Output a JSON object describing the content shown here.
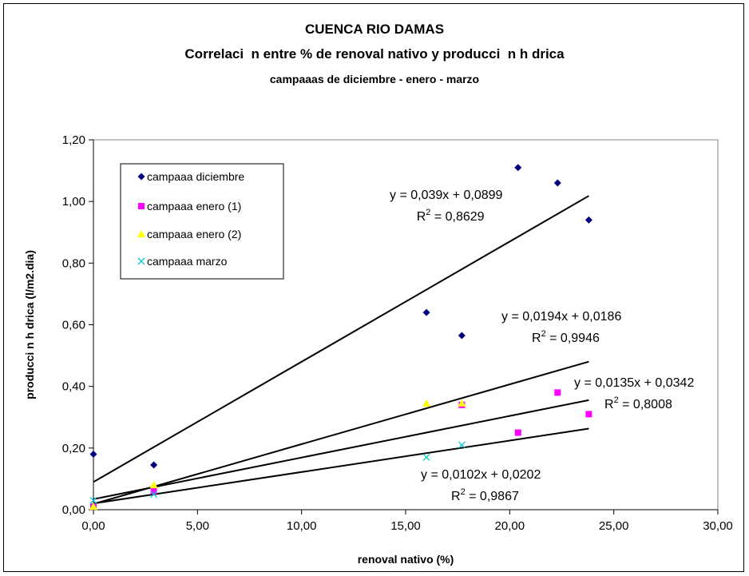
{
  "chart_data": {
    "type": "scatter",
    "title": "CUENCA RIO DAMAS",
    "subtitle": "Correlaci  n entre % de renoval nativo y producci  n h drica",
    "subtitle2": "campaaas de diciembre - enero - marzo",
    "xlabel": "renoval nativo (%)",
    "ylabel": "producci n h drica (l/m2.dia)",
    "xlim": [
      0,
      30
    ],
    "ylim": [
      0,
      1.2
    ],
    "xticks": [
      "0,00",
      "5,00",
      "10,00",
      "15,00",
      "20,00",
      "25,00",
      "30,00"
    ],
    "yticks": [
      "0,00",
      "0,20",
      "0,40",
      "0,60",
      "0,80",
      "1,00",
      "1,20"
    ],
    "grid": false,
    "legend_position": "top-left",
    "series": [
      {
        "name": "campaaa diciembre",
        "marker": "diamond",
        "color": "#000080",
        "x": [
          0,
          2.9,
          16.0,
          17.7,
          20.4,
          22.3,
          23.8
        ],
        "y": [
          0.18,
          0.145,
          0.64,
          0.565,
          1.11,
          1.06,
          0.94
        ]
      },
      {
        "name": "campaaa enero (1)",
        "marker": "square",
        "color": "#ff00ff",
        "x": [
          0,
          2.9,
          17.7,
          20.4,
          22.3,
          23.8
        ],
        "y": [
          0.01,
          0.06,
          0.34,
          0.25,
          0.38,
          0.31
        ]
      },
      {
        "name": "campaaa enero (2)",
        "marker": "triangle",
        "color": "#ffff00",
        "x": [
          0,
          2.9,
          16.0,
          17.7
        ],
        "y": [
          0.01,
          0.08,
          0.345,
          0.345
        ]
      },
      {
        "name": "campaaa marzo",
        "marker": "x",
        "color": "#00cccc",
        "x": [
          0,
          2.9,
          16.0,
          17.7
        ],
        "y": [
          0.03,
          0.05,
          0.17,
          0.21
        ]
      }
    ],
    "trendlines": [
      {
        "slope": 0.039,
        "intercept": 0.0899,
        "x_end": 23.8,
        "equation": "y = 0,039x + 0,0899",
        "r2_label": "R",
        "r2_value": " = 0,8629"
      },
      {
        "slope": 0.0194,
        "intercept": 0.0186,
        "x_end": 23.8,
        "equation": "y = 0,0194x + 0,0186",
        "r2_label": "R",
        "r2_value": " = 0,9946"
      },
      {
        "slope": 0.0135,
        "intercept": 0.0342,
        "x_end": 23.8,
        "equation": "y = 0,0135x + 0,0342",
        "r2_label": "R",
        "r2_value": " = 0,8008"
      },
      {
        "slope": 0.0102,
        "intercept": 0.0202,
        "x_end": 23.8,
        "equation": "y = 0,0102x + 0,0202",
        "r2_label": "R",
        "r2_value": " = 0,9867"
      }
    ],
    "r2_superscript": "2"
  }
}
